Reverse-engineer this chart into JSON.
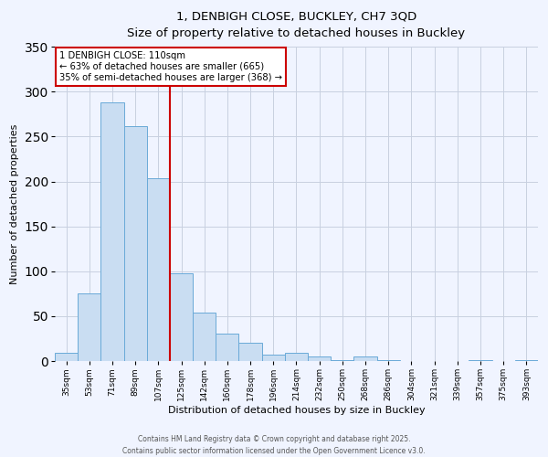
{
  "title_line1": "1, DENBIGH CLOSE, BUCKLEY, CH7 3QD",
  "title_line2": "Size of property relative to detached houses in Buckley",
  "xlabel": "Distribution of detached houses by size in Buckley",
  "ylabel": "Number of detached properties",
  "bin_labels": [
    "35sqm",
    "53sqm",
    "71sqm",
    "89sqm",
    "107sqm",
    "125sqm",
    "142sqm",
    "160sqm",
    "178sqm",
    "196sqm",
    "214sqm",
    "232sqm",
    "250sqm",
    "268sqm",
    "286sqm",
    "304sqm",
    "321sqm",
    "339sqm",
    "357sqm",
    "375sqm",
    "393sqm"
  ],
  "bar_values": [
    9,
    75,
    288,
    262,
    204,
    98,
    54,
    31,
    20,
    7,
    9,
    5,
    1,
    5,
    1,
    0,
    0,
    0,
    1,
    0,
    1
  ],
  "bar_color": "#c9ddf2",
  "bar_edge_color": "#6aaad8",
  "ylim": [
    0,
    350
  ],
  "yticks": [
    0,
    50,
    100,
    150,
    200,
    250,
    300,
    350
  ],
  "vline_x": 4.5,
  "vline_color": "#cc0000",
  "annotation_title": "1 DENBIGH CLOSE: 110sqm",
  "annotation_line1": "← 63% of detached houses are smaller (665)",
  "annotation_line2": "35% of semi-detached houses are larger (368) →",
  "annotation_box_color": "#cc0000",
  "footer_line1": "Contains HM Land Registry data © Crown copyright and database right 2025.",
  "footer_line2": "Contains public sector information licensed under the Open Government Licence v3.0.",
  "background_color": "#f0f4ff",
  "grid_color": "#c8d0e0"
}
